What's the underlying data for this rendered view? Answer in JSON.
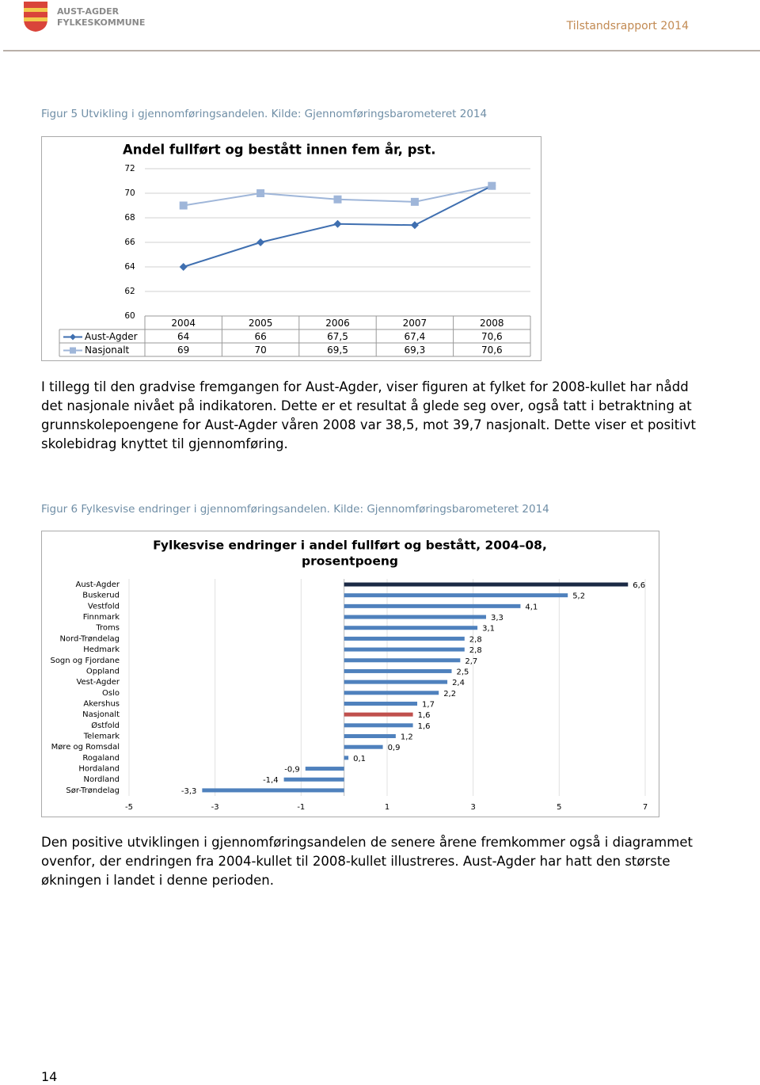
{
  "header": {
    "org": [
      "AUST-AGDER",
      "FYLKESKOMMUNE"
    ],
    "report": "Tilstandsrapport 2014"
  },
  "captions": [
    "Figur 5 Utvikling i gjennomføringsandelen. Kilde: Gjennomføringsbarometeret 2014",
    "Figur 6 Fylkesvise endringer i gjennomføringsandelen. Kilde: Gjennomføringsbarometeret 2014"
  ],
  "paragraphs": [
    "I tillegg til den gradvise fremgangen for Aust-Agder, viser figuren at fylket for 2008-kullet har nådd det nasjonale nivået på indikatoren. Dette er et resultat å glede seg over, også tatt i betraktning at grunnskolepoengene for Aust-Agder våren 2008 var 38,5, mot 39,7 nasjonalt. Dette viser et positivt skolebidrag knyttet til gjennomføring.",
    "Den positive utviklingen i gjennomføringsandelen de senere årene fremkommer også i diagrammet ovenfor, der endringen fra 2004-kullet til 2008-kullet illustreres. Aust-Agder har hatt den største økningen i landet i denne perioden."
  ],
  "page_number": 14,
  "chart_data": [
    {
      "type": "line",
      "title": "Andel fullført og bestått innen fem år, pst.",
      "categories": [
        "2004",
        "2005",
        "2006",
        "2007",
        "2008"
      ],
      "series": [
        {
          "name": "Aust-Agder",
          "color": "#3f6fb0",
          "values": [
            64,
            66,
            67.5,
            67.4,
            70.6
          ],
          "value_labels": [
            "64",
            "66",
            "67,5",
            "67,4",
            "70,6"
          ]
        },
        {
          "name": "Nasjonalt",
          "color": "#9fb6d9",
          "values": [
            69,
            70,
            69.5,
            69.3,
            70.6
          ],
          "value_labels": [
            "69",
            "70",
            "69,5",
            "69,3",
            "70,6"
          ]
        }
      ],
      "ylim": [
        60,
        72
      ],
      "yticks": [
        60,
        62,
        64,
        66,
        68,
        70,
        72
      ],
      "grid": true
    },
    {
      "type": "hbar",
      "title": [
        "Fylkesvise endringer i andel fullført og bestått, 2004–08,",
        "prosentpoeng"
      ],
      "categories": [
        "Aust-Agder",
        "Buskerud",
        "Vestfold",
        "Finnmark",
        "Troms",
        "Nord-Trøndelag",
        "Hedmark",
        "Sogn og Fjordane",
        "Oppland",
        "Vest-Agder",
        "Oslo",
        "Akershus",
        "Nasjonalt",
        "Østfold",
        "Telemark",
        "Møre og Romsdal",
        "Rogaland",
        "Hordaland",
        "Nordland",
        "Sør-Trøndelag"
      ],
      "values": [
        6.6,
        5.2,
        4.1,
        3.3,
        3.1,
        2.8,
        2.8,
        2.7,
        2.5,
        2.4,
        2.2,
        1.7,
        1.6,
        1.6,
        1.2,
        0.9,
        0.1,
        -0.9,
        -1.4,
        -3.3
      ],
      "value_labels": [
        "6,6",
        "5,2",
        "4,1",
        "3,3",
        "3,1",
        "2,8",
        "2,8",
        "2,7",
        "2,5",
        "2,4",
        "2,2",
        "1,7",
        "1,6",
        "1,6",
        "1,2",
        "0,9",
        "0,1",
        "-0,9",
        "-1,4",
        "-3,3"
      ],
      "colors": [
        "#1b2a45",
        "#4f81bd",
        "#4f81bd",
        "#4f81bd",
        "#4f81bd",
        "#4f81bd",
        "#4f81bd",
        "#4f81bd",
        "#4f81bd",
        "#4f81bd",
        "#4f81bd",
        "#4f81bd",
        "#c0504d",
        "#4f81bd",
        "#4f81bd",
        "#4f81bd",
        "#4f81bd",
        "#4f81bd",
        "#4f81bd",
        "#4f81bd"
      ],
      "xlim": [
        -5,
        7
      ],
      "xticks": [
        -5,
        -3,
        -1,
        1,
        3,
        5,
        7
      ],
      "grid": true
    }
  ]
}
